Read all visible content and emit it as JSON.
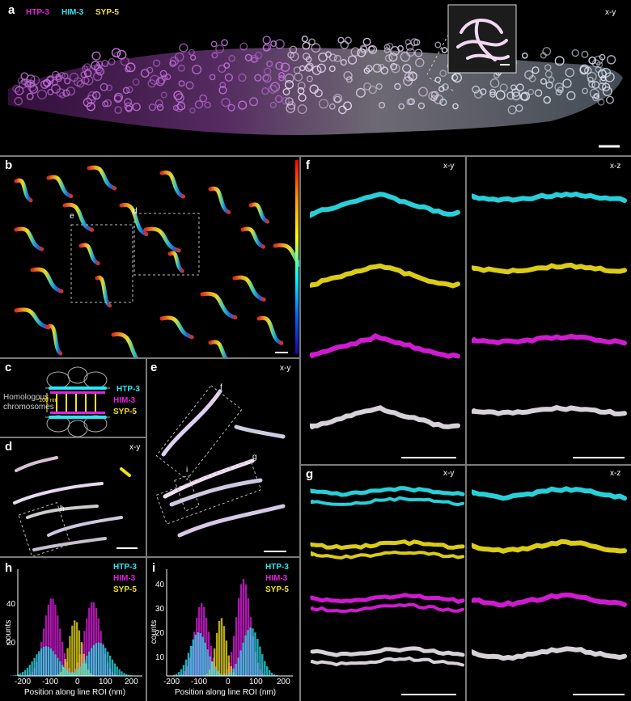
{
  "colors": {
    "cyan": "#2ee6f0",
    "magenta": "#e61ee6",
    "yellow": "#f2e21a",
    "bg": "#000000",
    "separator": "#7a7a7a"
  },
  "panel_a": {
    "label": "a",
    "view": "x-y",
    "legend": [
      "HTP-3",
      "HIM-3",
      "SYP-5"
    ]
  },
  "panel_b": {
    "label": "b",
    "box_labels": [
      "e",
      "d"
    ],
    "colorbar": "rainbow"
  },
  "panel_c": {
    "label": "c",
    "side_text": [
      "Homologous",
      "chromosomes"
    ],
    "scale_text": "~100 nm",
    "legend": [
      "HTP-3",
      "HIM-3",
      "SYP-5"
    ]
  },
  "panel_d": {
    "label": "d",
    "view": "x-y",
    "box_label": "h"
  },
  "panel_e": {
    "label": "e",
    "view": "x-y",
    "box_labels": [
      "f",
      "g",
      "i"
    ]
  },
  "panel_f": {
    "label": "f",
    "views": [
      "x-y",
      "x-z"
    ]
  },
  "panel_g": {
    "label": "g",
    "views": [
      "x-y",
      "x-z"
    ]
  },
  "panel_h": {
    "label": "h",
    "ylabel": "counts",
    "xlabel": "Position along line ROI (nm)",
    "yticks": [
      "20",
      "40"
    ],
    "xticks": [
      "-200",
      "-100",
      "0",
      "100",
      "200"
    ],
    "legend": [
      "HTP-3",
      "HIM-3",
      "SYP-5"
    ]
  },
  "panel_i": {
    "label": "i",
    "ylabel": "counts",
    "xlabel": "Position along line ROI (nm)",
    "yticks": [
      "10",
      "20",
      "30",
      "40"
    ],
    "xticks": [
      "-200",
      "-100",
      "0",
      "100",
      "200"
    ],
    "legend": [
      "HTP-3",
      "HIM-3",
      "SYP-5"
    ]
  }
}
